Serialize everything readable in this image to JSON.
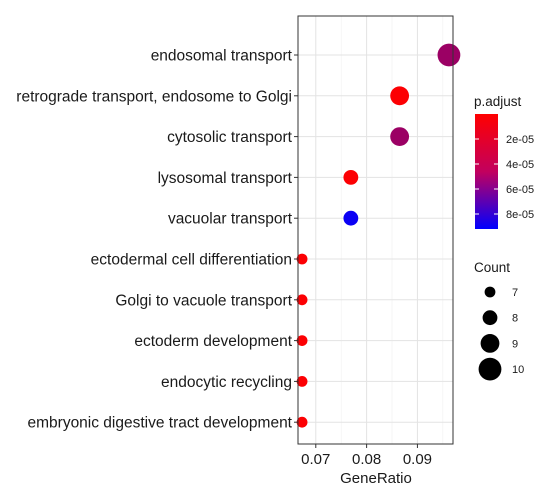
{
  "chart_data": {
    "type": "scatter",
    "xlabel": "GeneRatio",
    "ylabel": "",
    "xlim": [
      0.0665,
      0.097
    ],
    "x_ticks": [
      "0.07",
      "0.08",
      "0.09"
    ],
    "x_tick_values": [
      0.07,
      0.08,
      0.09
    ],
    "grid": true,
    "categories": [
      "endosomal transport",
      "retrograde transport, endosome to Golgi",
      "cytosolic transport",
      "lysosomal transport",
      "vacuolar transport",
      "ectodermal cell differentiation",
      "Golgi to vacuole transport",
      "ectoderm development",
      "endocytic recycling",
      "embryonic digestive tract development"
    ],
    "points": [
      {
        "term": "endosomal transport",
        "gene_ratio": 0.0962,
        "count": 10,
        "p_adjust": 3.6e-05
      },
      {
        "term": "retrograde transport, endosome to Golgi",
        "gene_ratio": 0.0865,
        "count": 9,
        "p_adjust": 1e-06
      },
      {
        "term": "cytosolic transport",
        "gene_ratio": 0.0865,
        "count": 9,
        "p_adjust": 3.6e-05
      },
      {
        "term": "lysosomal transport",
        "gene_ratio": 0.0769,
        "count": 8,
        "p_adjust": 1e-06
      },
      {
        "term": "vacuolar transport",
        "gene_ratio": 0.0769,
        "count": 8,
        "p_adjust": 8.8e-05
      },
      {
        "term": "ectodermal cell differentiation",
        "gene_ratio": 0.0673,
        "count": 7,
        "p_adjust": 1e-06
      },
      {
        "term": "Golgi to vacuole transport",
        "gene_ratio": 0.0673,
        "count": 7,
        "p_adjust": 1e-06
      },
      {
        "term": "ectoderm development",
        "gene_ratio": 0.0673,
        "count": 7,
        "p_adjust": 1e-06
      },
      {
        "term": "endocytic recycling",
        "gene_ratio": 0.0673,
        "count": 7,
        "p_adjust": 1e-06
      },
      {
        "term": "embryonic digestive tract development",
        "gene_ratio": 0.0673,
        "count": 7,
        "p_adjust": 1e-06
      }
    ],
    "color_legend": {
      "title": "p.adjust",
      "range": [
        0.0,
        9.2e-05
      ],
      "low_color": "#FF0000",
      "high_color": "#0000FF",
      "breaks": [
        2e-05,
        4e-05,
        6e-05,
        8e-05
      ],
      "labels": [
        "2e-05",
        "4e-05",
        "6e-05",
        "8e-05"
      ]
    },
    "size_legend": {
      "title": "Count",
      "values": [
        7,
        8,
        9,
        10
      ],
      "labels": [
        "7",
        "8",
        "9",
        "10"
      ]
    },
    "legend_position": "right"
  }
}
